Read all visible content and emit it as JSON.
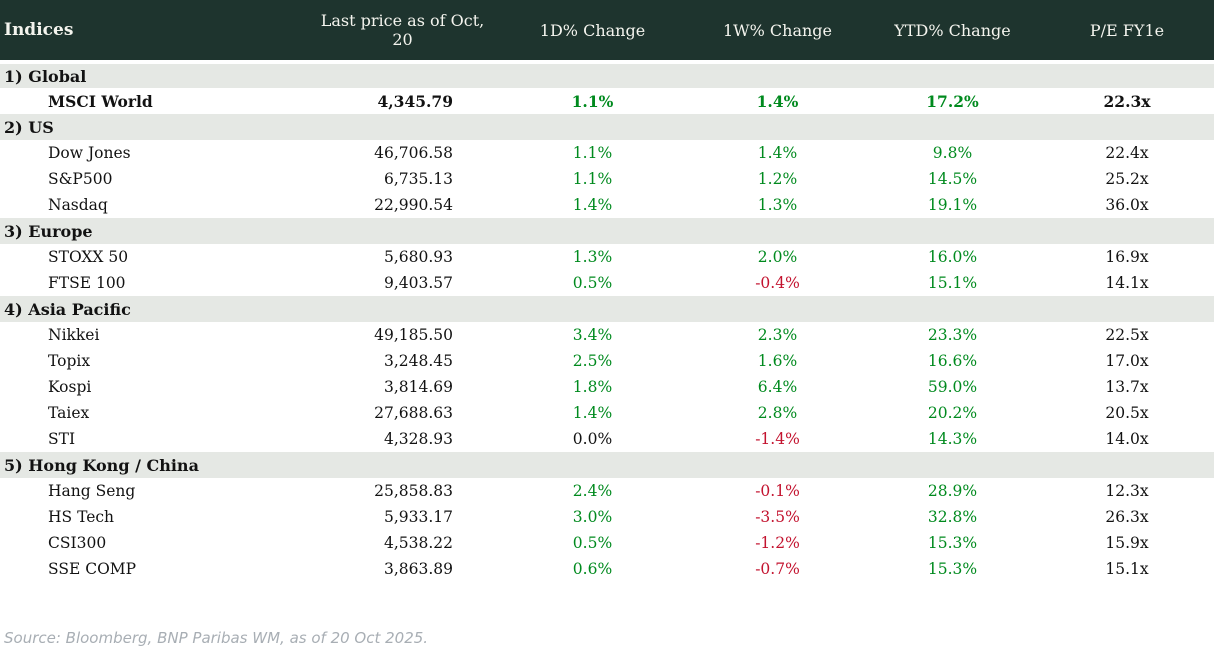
{
  "colors": {
    "header_bg": "#1e342e",
    "header_fg": "#f4f4ee",
    "section_bg": "#e5e8e4",
    "positive": "#008a1e",
    "negative": "#c3132f",
    "text": "#121212",
    "source_fg": "#a8aeb4"
  },
  "table": {
    "title": "Indices",
    "columns": [
      "Last price as of Oct, 20",
      "1D% Change",
      "1W% Change",
      "YTD% Change",
      "P/E FY1e"
    ],
    "sections": [
      {
        "label": "1) Global",
        "rows": [
          {
            "name": "MSCI World",
            "bold": true,
            "price": "4,345.79",
            "d1": "1.1%",
            "w1": "1.4%",
            "ytd": "17.2%",
            "pe": "22.3x"
          }
        ]
      },
      {
        "label": "2) US",
        "rows": [
          {
            "name": "Dow Jones",
            "bold": false,
            "price": "46,706.58",
            "d1": "1.1%",
            "w1": "1.4%",
            "ytd": "9.8%",
            "pe": "22.4x"
          },
          {
            "name": "S&P500",
            "bold": false,
            "price": "6,735.13",
            "d1": "1.1%",
            "w1": "1.2%",
            "ytd": "14.5%",
            "pe": "25.2x"
          },
          {
            "name": "Nasdaq",
            "bold": false,
            "price": "22,990.54",
            "d1": "1.4%",
            "w1": "1.3%",
            "ytd": "19.1%",
            "pe": "36.0x"
          }
        ]
      },
      {
        "label": "3) Europe",
        "rows": [
          {
            "name": "STOXX 50",
            "bold": false,
            "price": "5,680.93",
            "d1": "1.3%",
            "w1": "2.0%",
            "ytd": "16.0%",
            "pe": "16.9x"
          },
          {
            "name": "FTSE 100",
            "bold": false,
            "price": "9,403.57",
            "d1": "0.5%",
            "w1": "-0.4%",
            "ytd": "15.1%",
            "pe": "14.1x"
          }
        ]
      },
      {
        "label": "4) Asia Pacific",
        "rows": [
          {
            "name": "Nikkei",
            "bold": false,
            "price": "49,185.50",
            "d1": "3.4%",
            "w1": "2.3%",
            "ytd": "23.3%",
            "pe": "22.5x"
          },
          {
            "name": "Topix",
            "bold": false,
            "price": "3,248.45",
            "d1": "2.5%",
            "w1": "1.6%",
            "ytd": "16.6%",
            "pe": "17.0x"
          },
          {
            "name": "Kospi",
            "bold": false,
            "price": "3,814.69",
            "d1": "1.8%",
            "w1": "6.4%",
            "ytd": "59.0%",
            "pe": "13.7x"
          },
          {
            "name": "Taiex",
            "bold": false,
            "price": "27,688.63",
            "d1": "1.4%",
            "w1": "2.8%",
            "ytd": "20.2%",
            "pe": "20.5x"
          },
          {
            "name": "STI",
            "bold": false,
            "price": "4,328.93",
            "d1": "0.0%",
            "w1": "-1.4%",
            "ytd": "14.3%",
            "pe": "14.0x"
          }
        ]
      },
      {
        "label": "5) Hong Kong / China",
        "rows": [
          {
            "name": "Hang Seng",
            "bold": false,
            "price": "25,858.83",
            "d1": "2.4%",
            "w1": "-0.1%",
            "ytd": "28.9%",
            "pe": "12.3x"
          },
          {
            "name": "HS Tech",
            "bold": false,
            "price": "5,933.17",
            "d1": "3.0%",
            "w1": "-3.5%",
            "ytd": "32.8%",
            "pe": "26.3x"
          },
          {
            "name": "CSI300",
            "bold": false,
            "price": "4,538.22",
            "d1": "0.5%",
            "w1": "-1.2%",
            "ytd": "15.3%",
            "pe": "15.9x"
          },
          {
            "name": "SSE COMP",
            "bold": false,
            "price": "3,863.89",
            "d1": "0.6%",
            "w1": "-0.7%",
            "ytd": "15.3%",
            "pe": "15.1x"
          }
        ]
      }
    ]
  },
  "source": "Source: Bloomberg, BNP Paribas WM, as of 20 Oct 2025."
}
